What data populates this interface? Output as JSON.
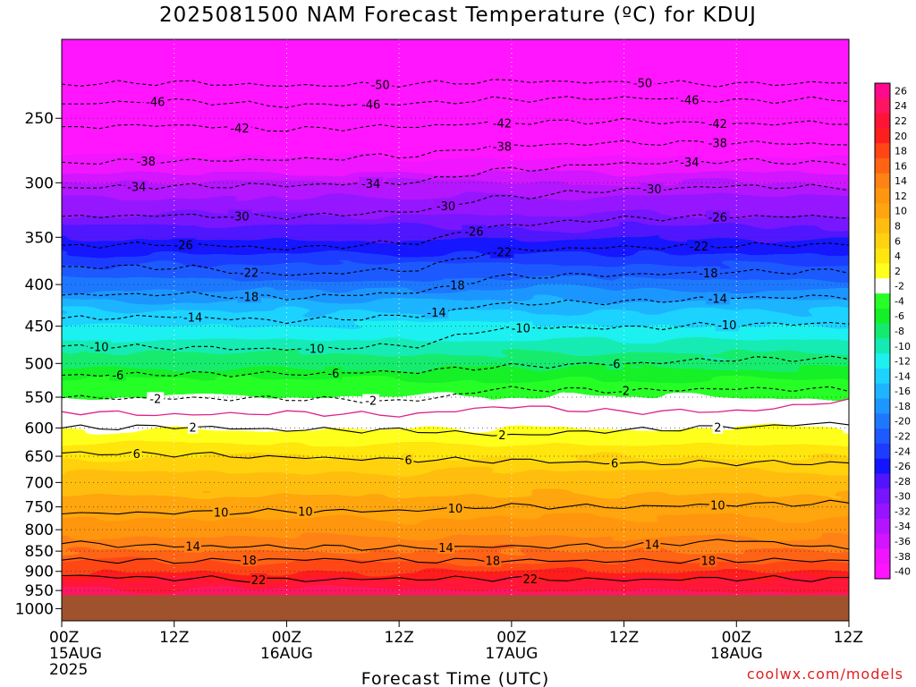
{
  "header": {
    "title": "2025081500 NAM Forecast Temperature (ºC) for KDUJ",
    "credit": "coolwx.com/models"
  },
  "chart_data": {
    "type": "heatmap",
    "title": "2025081500 NAM Forecast Temperature (ºC) for KDUJ",
    "xlabel": "Forecast Time (UTC)",
    "ylabel": "",
    "x_ticks": [
      {
        "hours": 0,
        "line1": "00Z",
        "line2": "15AUG",
        "line3": "2025"
      },
      {
        "hours": 12,
        "line1": "12Z",
        "line2": "",
        "line3": ""
      },
      {
        "hours": 24,
        "line1": "00Z",
        "line2": "16AUG",
        "line3": ""
      },
      {
        "hours": 36,
        "line1": "12Z",
        "line2": "",
        "line3": ""
      },
      {
        "hours": 48,
        "line1": "00Z",
        "line2": "17AUG",
        "line3": ""
      },
      {
        "hours": 60,
        "line1": "12Z",
        "line2": "",
        "line3": ""
      },
      {
        "hours": 72,
        "line1": "00Z",
        "line2": "18AUG",
        "line3": ""
      },
      {
        "hours": 84,
        "line1": "12Z",
        "line2": "",
        "line3": ""
      }
    ],
    "xlim": [
      0,
      84
    ],
    "y_ticks": [
      250,
      300,
      350,
      400,
      450,
      500,
      550,
      600,
      650,
      700,
      750,
      800,
      850,
      900,
      950,
      1000
    ],
    "ylim": [
      1035,
      200
    ],
    "y_scale": "log-pressure (hPa, inverted)",
    "grid": true,
    "terrain_below_hpa": 963,
    "freezing_line_color": "#e0208a",
    "terrain_color": "#a0522d",
    "colorbar": {
      "labels": [
        26,
        24,
        22,
        20,
        18,
        16,
        14,
        12,
        10,
        8,
        6,
        4,
        2,
        -2,
        -4,
        -6,
        -8,
        -10,
        -12,
        -14,
        -16,
        -18,
        -20,
        -22,
        -24,
        -26,
        -28,
        -30,
        -32,
        -34,
        -36,
        -38,
        -40
      ],
      "colors": [
        "#ff0a8c",
        "#ff1464",
        "#ff1437",
        "#ff1e1e",
        "#ff4614",
        "#ff6414",
        "#ff8214",
        "#ff960f",
        "#ffa50f",
        "#ffbe0f",
        "#ffd20f",
        "#ffe60f",
        "#ffff1e",
        "#ffffff",
        "#28ff28",
        "#14f028",
        "#14eb6e",
        "#14ebb4",
        "#1ef0f0",
        "#1ed2ff",
        "#1eb4ff",
        "#1e96ff",
        "#1e78ff",
        "#1e5aff",
        "#1e3cff",
        "#1414ff",
        "#5014ff",
        "#7814ff",
        "#9614ff",
        "#b414ff",
        "#d214ff",
        "#f014ff",
        "#ff14ff"
      ]
    },
    "profile": [
      {
        "p": 200,
        "t": -56
      },
      {
        "p": 220,
        "t": -50
      },
      {
        "p": 235,
        "t": -47
      },
      {
        "p": 250,
        "t": -44
      },
      {
        "p": 265,
        "t": -41
      },
      {
        "p": 280,
        "t": -38
      },
      {
        "p": 300,
        "t": -34
      },
      {
        "p": 320,
        "t": -31
      },
      {
        "p": 340,
        "t": -28
      },
      {
        "p": 360,
        "t": -25
      },
      {
        "p": 380,
        "t": -22
      },
      {
        "p": 400,
        "t": -19
      },
      {
        "p": 425,
        "t": -15
      },
      {
        "p": 450,
        "t": -12
      },
      {
        "p": 475,
        "t": -9
      },
      {
        "p": 500,
        "t": -7
      },
      {
        "p": 525,
        "t": -4
      },
      {
        "p": 550,
        "t": -2
      },
      {
        "p": 570,
        "t": 0
      },
      {
        "p": 600,
        "t": 2
      },
      {
        "p": 650,
        "t": 6
      },
      {
        "p": 700,
        "t": 9
      },
      {
        "p": 750,
        "t": 11
      },
      {
        "p": 800,
        "t": 13
      },
      {
        "p": 850,
        "t": 16
      },
      {
        "p": 900,
        "t": 20
      },
      {
        "p": 950,
        "t": 24
      }
    ],
    "contours": [
      {
        "temp": -50,
        "style": "dashed",
        "pressures": [
          227,
          226,
          228,
          227,
          225,
          226,
          227,
          226
        ],
        "labels": [
          {
            "x_hours": 34,
            "text": "-50"
          },
          {
            "x_hours": 62,
            "text": "-50"
          }
        ]
      },
      {
        "temp": -46,
        "style": "dashed",
        "pressures": [
          240,
          238,
          241,
          240,
          237,
          236,
          238,
          237
        ],
        "labels": [
          {
            "x_hours": 10,
            "text": "-46"
          },
          {
            "x_hours": 33,
            "text": "-46"
          },
          {
            "x_hours": 67,
            "text": "-46"
          }
        ]
      },
      {
        "temp": -42,
        "style": "dashed",
        "pressures": [
          256,
          255,
          258,
          256,
          253,
          252,
          254,
          253
        ],
        "labels": [
          {
            "x_hours": 19,
            "text": "-42"
          },
          {
            "x_hours": 47,
            "text": "-42"
          },
          {
            "x_hours": 70,
            "text": "-42"
          }
        ]
      },
      {
        "temp": -38,
        "style": "dashed",
        "pressures": [
          283,
          282,
          281,
          278,
          270,
          268,
          268,
          269
        ],
        "labels": [
          {
            "x_hours": 9,
            "text": "-38"
          },
          {
            "x_hours": 47,
            "text": "-38"
          },
          {
            "x_hours": 70,
            "text": "-38"
          }
        ]
      },
      {
        "temp": -34,
        "style": "dashed",
        "pressures": [
          304,
          303,
          302,
          300,
          289,
          284,
          282,
          284
        ],
        "labels": [
          {
            "x_hours": 8,
            "text": "-34"
          },
          {
            "x_hours": 33,
            "text": "-34"
          },
          {
            "x_hours": 67,
            "text": "-34"
          }
        ]
      },
      {
        "temp": -30,
        "style": "dashed",
        "pressures": [
          330,
          329,
          330,
          326,
          312,
          306,
          303,
          304
        ],
        "labels": [
          {
            "x_hours": 19,
            "text": "-30"
          },
          {
            "x_hours": 41,
            "text": "-30"
          },
          {
            "x_hours": 63,
            "text": "-30"
          }
        ]
      },
      {
        "temp": -26,
        "style": "dashed",
        "pressures": [
          358,
          357,
          361,
          356,
          338,
          332,
          330,
          330
        ],
        "labels": [
          {
            "x_hours": 13,
            "text": "-26"
          },
          {
            "x_hours": 44,
            "text": "-26"
          },
          {
            "x_hours": 70,
            "text": "-26"
          }
        ]
      },
      {
        "temp": -22,
        "style": "dashed",
        "pressures": [
          380,
          381,
          389,
          384,
          363,
          360,
          358,
          357
        ],
        "labels": [
          {
            "x_hours": 20,
            "text": "-22"
          },
          {
            "x_hours": 47,
            "text": "-22"
          },
          {
            "x_hours": 68,
            "text": "-22"
          }
        ]
      },
      {
        "temp": -18,
        "style": "dashed",
        "pressures": [
          412,
          411,
          415,
          410,
          391,
          389,
          386,
          385
        ],
        "labels": [
          {
            "x_hours": 20,
            "text": "-18"
          },
          {
            "x_hours": 42,
            "text": "-18"
          },
          {
            "x_hours": 69,
            "text": "-18"
          }
        ]
      },
      {
        "temp": -14,
        "style": "dashed",
        "pressures": [
          440,
          438,
          443,
          438,
          422,
          420,
          415,
          414
        ],
        "labels": [
          {
            "x_hours": 14,
            "text": "-14"
          },
          {
            "x_hours": 40,
            "text": "-14"
          },
          {
            "x_hours": 70,
            "text": "-14"
          }
        ]
      },
      {
        "temp": -10,
        "style": "dashed",
        "pressures": [
          476,
          478,
          480,
          476,
          452,
          452,
          448,
          446
        ],
        "labels": [
          {
            "x_hours": 4,
            "text": "-10"
          },
          {
            "x_hours": 27,
            "text": "-10"
          },
          {
            "x_hours": 49,
            "text": "-10"
          },
          {
            "x_hours": 71,
            "text": "-10"
          }
        ]
      },
      {
        "temp": -6,
        "style": "dashed",
        "pressures": [
          517,
          515,
          515,
          512,
          504,
          500,
          494,
          493
        ],
        "labels": [
          {
            "x_hours": 6,
            "text": "-6"
          },
          {
            "x_hours": 29,
            "text": "-6"
          },
          {
            "x_hours": 59,
            "text": "-6"
          }
        ]
      },
      {
        "temp": -2,
        "style": "dashed",
        "pressures": [
          551,
          552,
          552,
          556,
          537,
          540,
          537,
          538
        ],
        "labels": [
          {
            "x_hours": 10,
            "text": "-2"
          },
          {
            "x_hours": 33,
            "text": "-2"
          },
          {
            "x_hours": 60,
            "text": "-2"
          }
        ]
      },
      {
        "temp": 0,
        "style": "freezing",
        "pressures": [
          573,
          578,
          575,
          578,
          565,
          573,
          572,
          556
        ],
        "labels": []
      },
      {
        "temp": 2,
        "style": "solid",
        "pressures": [
          600,
          598,
          603,
          604,
          612,
          604,
          598,
          592
        ],
        "labels": [
          {
            "x_hours": 14,
            "text": "2"
          },
          {
            "x_hours": 47,
            "text": "2"
          },
          {
            "x_hours": 70,
            "text": "2"
          }
        ]
      },
      {
        "temp": 6,
        "style": "solid",
        "pressures": [
          644,
          646,
          652,
          656,
          658,
          663,
          662,
          663
        ],
        "labels": [
          {
            "x_hours": 8,
            "text": "6"
          },
          {
            "x_hours": 37,
            "text": "6"
          },
          {
            "x_hours": 59,
            "text": "6"
          }
        ]
      },
      {
        "temp": 10,
        "style": "solid",
        "pressures": [
          765,
          762,
          760,
          758,
          748,
          750,
          745,
          742
        ],
        "labels": [
          {
            "x_hours": 17,
            "text": "10"
          },
          {
            "x_hours": 26,
            "text": "10"
          },
          {
            "x_hours": 42,
            "text": "10"
          },
          {
            "x_hours": 70,
            "text": "10"
          }
        ]
      },
      {
        "temp": 14,
        "style": "solid",
        "pressures": [
          832,
          838,
          840,
          842,
          839,
          837,
          825,
          843
        ],
        "labels": [
          {
            "x_hours": 14,
            "text": "14"
          },
          {
            "x_hours": 41,
            "text": "14"
          },
          {
            "x_hours": 63,
            "text": "14"
          }
        ]
      },
      {
        "temp": 18,
        "style": "solid",
        "pressures": [
          872,
          874,
          870,
          873,
          873,
          874,
          872,
          873
        ],
        "labels": [
          {
            "x_hours": 20,
            "text": "18"
          },
          {
            "x_hours": 46,
            "text": "18"
          },
          {
            "x_hours": 69,
            "text": "18"
          }
        ]
      },
      {
        "temp": 22,
        "style": "solid",
        "pressures": [
          911,
          918,
          922,
          919,
          918,
          922,
          918,
          920
        ],
        "labels": [
          {
            "x_hours": 21,
            "text": "22"
          },
          {
            "x_hours": 50,
            "text": "22"
          }
        ]
      }
    ]
  }
}
